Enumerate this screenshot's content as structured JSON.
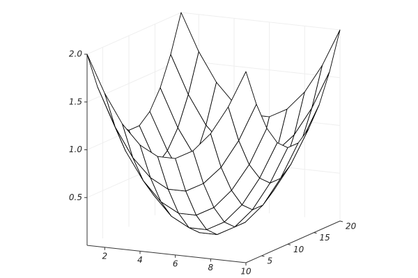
{
  "chart_data": {
    "type": "surface",
    "x": [
      1,
      2,
      3,
      4,
      5,
      6,
      7,
      8,
      9,
      10
    ],
    "y": [
      2,
      4,
      6,
      8,
      10,
      12,
      14,
      16,
      18,
      20
    ],
    "z": [
      [
        2,
        1.61,
        1.31,
        1.11,
        1.01,
        1.01,
        1.11,
        1.31,
        1.61,
        2
      ],
      [
        1.61,
        1.21,
        0.91,
        0.72,
        0.62,
        0.62,
        0.72,
        0.91,
        1.21,
        1.61
      ],
      [
        1.31,
        0.91,
        0.62,
        0.42,
        0.32,
        0.32,
        0.42,
        0.62,
        0.91,
        1.31
      ],
      [
        1.11,
        0.72,
        0.42,
        0.22,
        0.12,
        0.12,
        0.22,
        0.42,
        0.72,
        1.11
      ],
      [
        1.01,
        0.62,
        0.32,
        0.12,
        0.02,
        0.02,
        0.12,
        0.32,
        0.62,
        1.01
      ],
      [
        1.01,
        0.62,
        0.32,
        0.12,
        0.02,
        0.02,
        0.12,
        0.32,
        0.62,
        1.01
      ],
      [
        1.11,
        0.72,
        0.42,
        0.22,
        0.12,
        0.12,
        0.22,
        0.42,
        0.72,
        1.11
      ],
      [
        1.31,
        0.91,
        0.62,
        0.42,
        0.32,
        0.32,
        0.42,
        0.62,
        0.91,
        1.31
      ],
      [
        1.61,
        1.21,
        0.91,
        0.72,
        0.62,
        0.62,
        0.72,
        0.91,
        1.21,
        1.61
      ],
      [
        2,
        1.61,
        1.31,
        1.11,
        1.01,
        1.01,
        1.11,
        1.31,
        1.61,
        2
      ]
    ],
    "xlim": [
      1,
      10
    ],
    "ylim": [
      2,
      20
    ],
    "zlim": [
      0,
      2
    ],
    "xticks": [
      2,
      4,
      6,
      8,
      10
    ],
    "yticks": [
      5,
      10,
      15,
      20
    ],
    "zticks": [
      0.5,
      {
        "value": 1,
        "label": "1.0"
      },
      1.5,
      {
        "value": 2,
        "label": "2.0"
      }
    ],
    "color": "#ffffff",
    "edge_color": "#000000",
    "grid": true
  }
}
